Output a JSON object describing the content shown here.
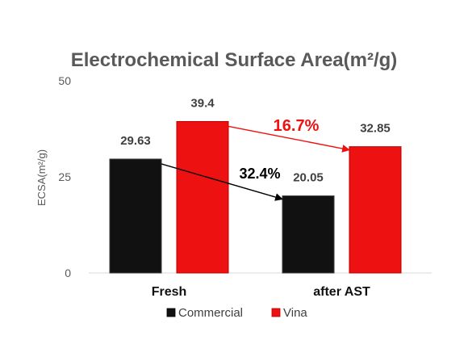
{
  "chart_data": {
    "type": "bar",
    "title": "Electrochemical Surface Area(m²/g)",
    "ylabel": "ECSA(m²/g)",
    "xlabel": "",
    "categories": [
      "Fresh",
      "after AST"
    ],
    "ylim": [
      0,
      50
    ],
    "yticks": [
      0,
      25,
      50
    ],
    "grid": false,
    "legend_position": "bottom",
    "series": [
      {
        "name": "Commercial",
        "values": [
          29.63,
          20.05
        ],
        "labels": [
          "29.63",
          "20.05"
        ],
        "color": "#111111"
      },
      {
        "name": "Vina",
        "values": [
          39.4,
          32.85
        ],
        "labels": [
          "39.4",
          "32.85"
        ],
        "color": "#ee1111"
      }
    ],
    "annotations": [
      {
        "text": "32.4%",
        "series": "Commercial",
        "color": "#000000"
      },
      {
        "text": "16.7%",
        "series": "Vina",
        "color": "#ee1111"
      }
    ]
  }
}
